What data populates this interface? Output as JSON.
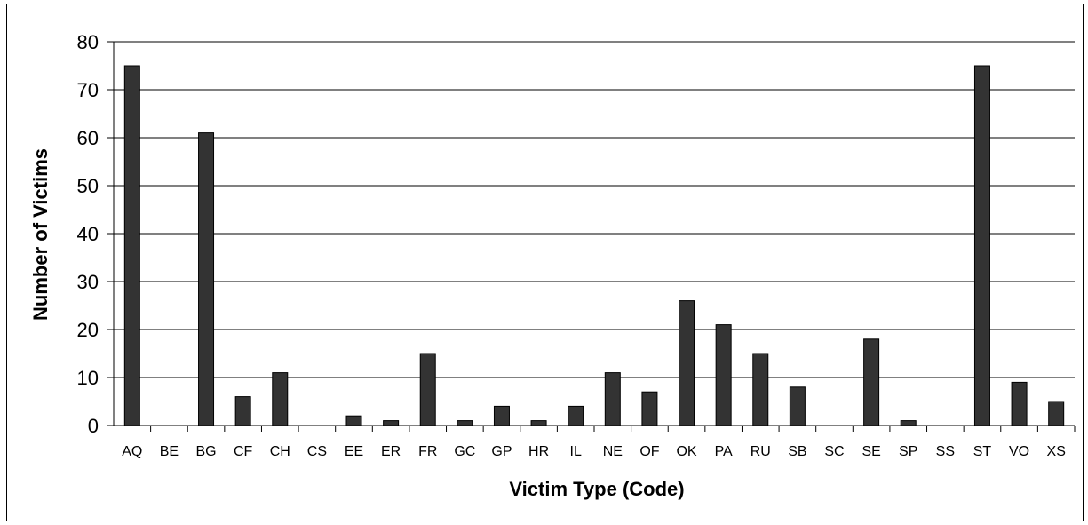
{
  "chart_data": {
    "type": "bar",
    "title": "",
    "xlabel": "Victim Type (Code)",
    "ylabel": "Number of Victims",
    "ylim": [
      0,
      80
    ],
    "yticks": [
      0,
      10,
      20,
      30,
      40,
      50,
      60,
      70,
      80
    ],
    "grid": true,
    "legend": "none",
    "bar_color": "#333333",
    "categories": [
      "AQ",
      "BE",
      "BG",
      "CF",
      "CH",
      "CS",
      "EE",
      "ER",
      "FR",
      "GC",
      "GP",
      "HR",
      "IL",
      "NE",
      "OF",
      "OK",
      "PA",
      "RU",
      "SB",
      "SC",
      "SE",
      "SP",
      "SS",
      "ST",
      "VO",
      "XS"
    ],
    "values": [
      75,
      0,
      61,
      6,
      11,
      0,
      2,
      1,
      15,
      1,
      4,
      1,
      4,
      11,
      7,
      26,
      21,
      15,
      8,
      0,
      18,
      1,
      0,
      75,
      9,
      5
    ]
  }
}
